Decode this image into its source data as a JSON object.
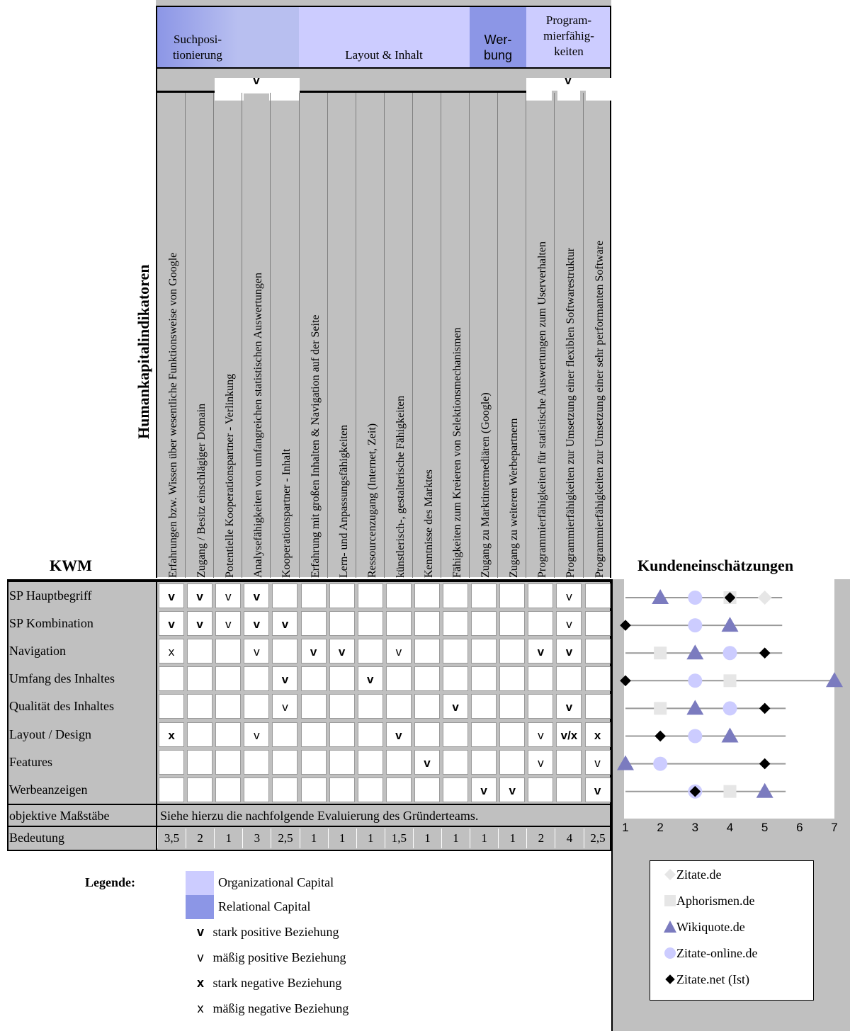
{
  "header_groups": [
    {
      "label": "Suchposi-\ntionierung"
    },
    {
      "label": "Layout & Inhalt"
    },
    {
      "label": "Wer-\nbung"
    },
    {
      "label": "Program-\nmierfähig-\nkeiten"
    }
  ],
  "top_marks": [
    "v",
    "v"
  ],
  "side_title": "Humankapitalindikatoren",
  "kwm_title": "KWM",
  "kunden_title": "Kundeneinschätzungen",
  "columns": [
    "Erfahrungen bzw. Wissen über wesentliche Funktionsweise von Google",
    "Zugang / Besitz einschlägiger Domain",
    "Potentielle Kooperationspartner - Verlinkung",
    "Analysefähigkeiten von umfangreichen statistischen Auswertungen",
    "Kooperationspartner - Inhalt",
    "Erfahrung mit großen Inhalten & Navigation auf der Seite",
    "Lern- und Anpassungsfähigkeiten",
    "Ressourcenzugang (Internet, Zeit)",
    "künstlerisch-, gestalterische Fähigkeiten",
    "Kenntnisse des Marktes",
    "Fähigkeiten zum Kreieren von Selektionsmechanismen",
    "Zugang zu Marktintermediären (Google)",
    "Zugang zu weiteren Werbepartnern",
    "Programmierfähigkeiten für statistische Auswertungen zum Userverhalten",
    "Programmierfähigkeiten zur Umsetzung einer flexiblen Softwarestruktur",
    "Programmierfähigkeiten zur Umsetzung einer sehr performanten Software"
  ],
  "rows": [
    {
      "label": "SP Hauptbegriff",
      "cells": [
        "V",
        "V",
        "v",
        "V",
        "",
        "",
        "",
        "",
        "",
        "",
        "",
        "",
        "",
        "",
        "v",
        ""
      ]
    },
    {
      "label": "SP Kombination",
      "cells": [
        "V",
        "V",
        "v",
        "V",
        "V",
        "",
        "",
        "",
        "",
        "",
        "",
        "",
        "",
        "",
        "v",
        ""
      ]
    },
    {
      "label": "Navigation",
      "cells": [
        "x",
        "",
        "",
        "v",
        "",
        "V",
        "V",
        "",
        "v",
        "",
        "",
        "",
        "",
        "V",
        "V",
        ""
      ]
    },
    {
      "label": "Umfang des Inhaltes",
      "cells": [
        "",
        "",
        "",
        "",
        "V",
        "",
        "",
        "V",
        "",
        "",
        "",
        "",
        "",
        "",
        "",
        ""
      ]
    },
    {
      "label": "Qualität des Inhaltes",
      "cells": [
        "",
        "",
        "",
        "",
        "v",
        "",
        "",
        "",
        "",
        "",
        "V",
        "",
        "",
        "",
        "V",
        ""
      ]
    },
    {
      "label": "Layout / Design",
      "cells": [
        "X",
        "",
        "",
        "v",
        "",
        "",
        "",
        "",
        "V",
        "",
        "",
        "",
        "",
        "v",
        "V/x",
        "X"
      ]
    },
    {
      "label": "Features",
      "cells": [
        "",
        "",
        "",
        "",
        "",
        "",
        "",
        "",
        "",
        "V",
        "",
        "",
        "",
        "v",
        "",
        "v"
      ]
    },
    {
      "label": "Werbeanzeigen",
      "cells": [
        "",
        "",
        "",
        "",
        "",
        "",
        "",
        "",
        "",
        "",
        "",
        "V",
        "V",
        "",
        "",
        "V"
      ]
    }
  ],
  "objective_label": "objektive Maßstäbe",
  "objective_text": "Siehe hierzu die nachfolgende Evaluierung des Gründerteams.",
  "bedeutung_label": "Bedeutung",
  "bedeutung_values": [
    "3,5",
    "2",
    "1",
    "3",
    "2,5",
    "1",
    "1",
    "1",
    "1,5",
    "1",
    "1",
    "1",
    "1",
    "2",
    "4",
    "2,5"
  ],
  "legend": {
    "title": "Legende:",
    "org": "Organizational Capital",
    "rel": "Relational Capital",
    "items": [
      {
        "symbol": "v",
        "bold": true,
        "text": "stark positive Beziehung"
      },
      {
        "symbol": "v",
        "bold": false,
        "text": "mäßig positive Beziehung"
      },
      {
        "symbol": "x",
        "bold": true,
        "text": "stark negative Beziehung"
      },
      {
        "symbol": "x",
        "bold": false,
        "text": "mäßig negative Beziehung"
      }
    ]
  },
  "chart_data": {
    "type": "scatter",
    "xlim": [
      1,
      7
    ],
    "xticks": [
      "1",
      "2",
      "3",
      "4",
      "5",
      "6",
      "7"
    ],
    "categories": [
      "SP Hauptbegriff",
      "SP Kombination",
      "Navigation",
      "Umfang des Inhaltes",
      "Qualität des Inhaltes",
      "Layout / Design",
      "Features",
      "Werbeanzeigen"
    ],
    "series": [
      {
        "name": "Zitate.de",
        "marker": "diamond",
        "color": "#e6e6e6",
        "values": [
          5,
          null,
          null,
          null,
          null,
          null,
          null,
          null
        ]
      },
      {
        "name": "Aphorismen.de",
        "marker": "square",
        "color": "#e6e6e6",
        "values": [
          4,
          null,
          2,
          4,
          2,
          null,
          null,
          4
        ]
      },
      {
        "name": "Wikiquote.de",
        "marker": "triangle",
        "color": "#7b7bbf",
        "values": [
          2,
          4,
          3,
          7,
          3,
          4,
          1,
          5
        ]
      },
      {
        "name": "Zitate-online.de",
        "marker": "circle",
        "color": "#ccccff",
        "values": [
          3,
          3,
          4,
          3,
          4,
          3,
          2,
          3
        ]
      },
      {
        "name": "Zitate.net (Ist)",
        "marker": "diamond",
        "color": "#000000",
        "values": [
          4,
          1,
          5,
          1,
          5,
          2,
          5,
          3
        ]
      }
    ],
    "line_ranges": [
      [
        1,
        5.5
      ],
      [
        1,
        5.5
      ],
      [
        1,
        5.5
      ],
      [
        1,
        7
      ],
      [
        1,
        5.6
      ],
      [
        1,
        5.6
      ],
      [
        1,
        5.6
      ],
      [
        1,
        5.6
      ]
    ]
  }
}
